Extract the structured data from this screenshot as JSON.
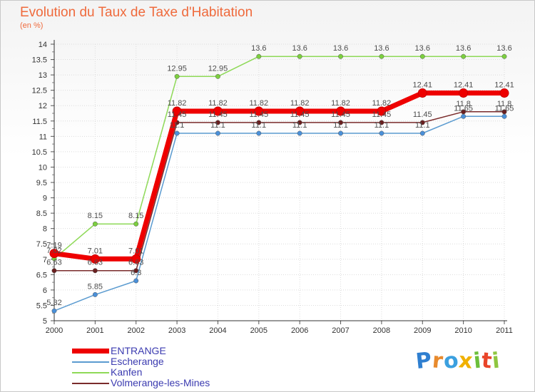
{
  "title": "Evolution du Taux de Taxe d'Habitation",
  "subtitle": "(en %)",
  "chart_data": {
    "type": "line",
    "title": "Evolution du Taux de Taxe d'Habitation",
    "ylabel": "(en %)",
    "xlabel": "",
    "x": [
      "2000",
      "2001",
      "2002",
      "2003",
      "2004",
      "2005",
      "2006",
      "2007",
      "2008",
      "2009",
      "2010",
      "2011"
    ],
    "ylim": [
      5,
      14
    ],
    "yticks": [
      "5",
      "5.5",
      "6",
      "6.5",
      "7",
      "7.5",
      "8",
      "8.5",
      "9",
      "9.5",
      "10",
      "10.5",
      "11",
      "11.5",
      "12",
      "12.5",
      "13",
      "13.5",
      "14"
    ],
    "grid": true,
    "legend_position": "bottom-left",
    "series": [
      {
        "name": "ENTRANGE",
        "color": "#ee0000",
        "values": [
          7.19,
          7.01,
          7.01,
          11.82,
          11.82,
          11.82,
          11.82,
          11.82,
          11.82,
          12.41,
          12.41,
          12.41
        ],
        "labels": [
          "7.19",
          "7.01",
          "7.01",
          "11.82",
          "11.82",
          "11.82",
          "11.82",
          "11.82",
          "11.82",
          "12.41",
          "12.41",
          "12.41"
        ]
      },
      {
        "name": "Escherange",
        "color": "#5b9bd0",
        "values": [
          5.32,
          5.85,
          6.3,
          11.1,
          11.1,
          11.1,
          11.1,
          11.1,
          11.1,
          11.1,
          11.65,
          11.65
        ],
        "labels": [
          "5.32",
          "5.85",
          "6.3",
          "11.1",
          "11.1",
          "11.1",
          "11.1",
          "11.1",
          "11.1",
          "11.1",
          "11.65",
          "11.65"
        ]
      },
      {
        "name": "Kanfen",
        "color": "#8ed957",
        "values": [
          7.02,
          8.15,
          8.15,
          12.95,
          12.95,
          13.6,
          13.6,
          13.6,
          13.6,
          13.6,
          13.6,
          13.6
        ],
        "labels": [
          "7.02",
          "8.15",
          "8.15",
          "12.95",
          "12.95",
          "13.6",
          "13.6",
          "13.6",
          "13.6",
          "13.6",
          "13.6",
          "13.6"
        ]
      },
      {
        "name": "Volmerange-les-Mines",
        "color": "#7a2b2b",
        "values": [
          6.63,
          6.63,
          6.63,
          11.45,
          11.45,
          11.45,
          11.45,
          11.45,
          11.45,
          11.45,
          11.8,
          11.8
        ],
        "labels": [
          "6.63",
          "6.63",
          "6.63",
          "11.45",
          "11.45",
          "11.45",
          "11.45",
          "11.45",
          "11.45",
          "11.45",
          "11.8",
          "11.8"
        ]
      }
    ]
  },
  "logo": {
    "letters": [
      "P",
      "r",
      "o",
      "x",
      "i",
      "t",
      "i"
    ],
    "colors": [
      "#2f7fd0",
      "#e88a2d",
      "#3ba0df",
      "#f0b000",
      "#6cbf3a",
      "#e9452a",
      "#8fc640"
    ]
  }
}
